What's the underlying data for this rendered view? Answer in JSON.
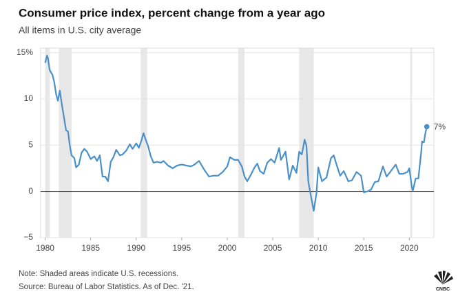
{
  "chart_data": {
    "type": "line",
    "title": "Consumer price index, percent change from a year ago",
    "subtitle": "All items in U.S. city average",
    "x": [
      1980.0,
      1980.2,
      1980.3,
      1980.5,
      1980.8,
      1981.0,
      1981.2,
      1981.4,
      1981.6,
      1981.8,
      1982.0,
      1982.3,
      1982.5,
      1982.7,
      1982.9,
      1983.2,
      1983.4,
      1983.7,
      1984.0,
      1984.3,
      1984.6,
      1985.0,
      1985.4,
      1985.7,
      1986.0,
      1986.3,
      1986.6,
      1986.9,
      1987.2,
      1987.5,
      1987.8,
      1988.2,
      1988.5,
      1988.9,
      1989.3,
      1989.6,
      1990.0,
      1990.3,
      1990.6,
      1990.8,
      1991.0,
      1991.3,
      1991.6,
      1991.9,
      1992.3,
      1992.7,
      1993.0,
      1993.5,
      1994.0,
      1994.5,
      1995.0,
      1995.5,
      1996.0,
      1996.4,
      1996.9,
      1997.5,
      1998.0,
      1998.5,
      1999.0,
      1999.5,
      2000.0,
      2000.3,
      2000.8,
      2001.2,
      2001.6,
      2001.9,
      2002.2,
      2002.6,
      2003.0,
      2003.3,
      2003.6,
      2004.0,
      2004.4,
      2004.8,
      2005.2,
      2005.7,
      2005.9,
      2006.4,
      2006.8,
      2007.2,
      2007.6,
      2007.9,
      2008.2,
      2008.5,
      2008.7,
      2008.9,
      2009.1,
      2009.5,
      2009.8,
      2010.0,
      2010.4,
      2010.9,
      2011.4,
      2011.7,
      2012.0,
      2012.4,
      2012.8,
      2013.3,
      2013.7,
      2014.2,
      2014.7,
      2015.0,
      2015.4,
      2015.8,
      2016.2,
      2016.6,
      2017.1,
      2017.5,
      2017.9,
      2018.5,
      2018.9,
      2019.3,
      2019.8,
      2020.0,
      2020.3,
      2020.4,
      2020.7,
      2021.0,
      2021.3,
      2021.4,
      2021.6,
      2021.75,
      2021.92
    ],
    "series": [
      {
        "color": "#4a90c8",
        "values": [
          13.9,
          14.7,
          14.4,
          13.1,
          12.6,
          11.8,
          10.5,
          9.8,
          10.9,
          9.6,
          8.4,
          6.6,
          6.5,
          5.0,
          3.9,
          3.6,
          2.6,
          2.9,
          4.2,
          4.6,
          4.3,
          3.5,
          3.8,
          3.3,
          3.9,
          1.6,
          1.6,
          1.1,
          3.2,
          3.7,
          4.5,
          3.9,
          4.0,
          4.4,
          5.1,
          4.6,
          5.2,
          4.7,
          5.6,
          6.3,
          5.7,
          4.9,
          3.8,
          3.1,
          3.2,
          3.1,
          3.3,
          2.8,
          2.5,
          2.8,
          2.9,
          2.8,
          2.7,
          2.9,
          3.3,
          2.3,
          1.6,
          1.7,
          1.7,
          2.1,
          2.7,
          3.7,
          3.4,
          3.4,
          2.7,
          1.6,
          1.1,
          1.8,
          2.6,
          3.0,
          2.2,
          1.9,
          3.1,
          3.5,
          3.1,
          4.7,
          3.4,
          4.3,
          1.3,
          2.8,
          2.0,
          4.3,
          4.0,
          5.6,
          4.9,
          1.1,
          0.0,
          -2.1,
          -0.2,
          2.6,
          1.1,
          1.5,
          3.6,
          3.9,
          2.9,
          1.7,
          2.2,
          1.1,
          1.2,
          2.1,
          1.7,
          -0.1,
          0.0,
          0.2,
          1.0,
          1.1,
          2.7,
          1.6,
          2.1,
          2.9,
          1.9,
          1.9,
          2.1,
          2.5,
          0.3,
          0.1,
          1.4,
          1.4,
          4.2,
          5.4,
          5.3,
          6.2,
          7.0
        ]
      }
    ],
    "annotation": "7%",
    "recessions": [
      [
        1980.0,
        1980.5
      ],
      [
        1981.5,
        1982.9
      ],
      [
        1990.5,
        1991.2
      ],
      [
        2001.2,
        2001.9
      ],
      [
        2007.9,
        2009.5
      ],
      [
        2020.1,
        2020.3
      ]
    ],
    "recession_color": "#e8e8e8",
    "xlim": [
      1979.5,
      2022.7
    ],
    "xticks": [
      1980,
      1985,
      1990,
      1995,
      2000,
      2005,
      2010,
      2015,
      2020
    ],
    "ylim": [
      -5,
      15.5
    ],
    "yticks": [
      {
        "value": -5,
        "label": "−5"
      },
      0,
      5,
      10,
      {
        "value": 15,
        "label": "15%"
      }
    ],
    "grid": true,
    "note": "Note: Shaded areas indicate U.S. recessions.",
    "source": "Source: Bureau of Labor Statistics. As of Dec. '21.",
    "logo": "CNBC"
  }
}
